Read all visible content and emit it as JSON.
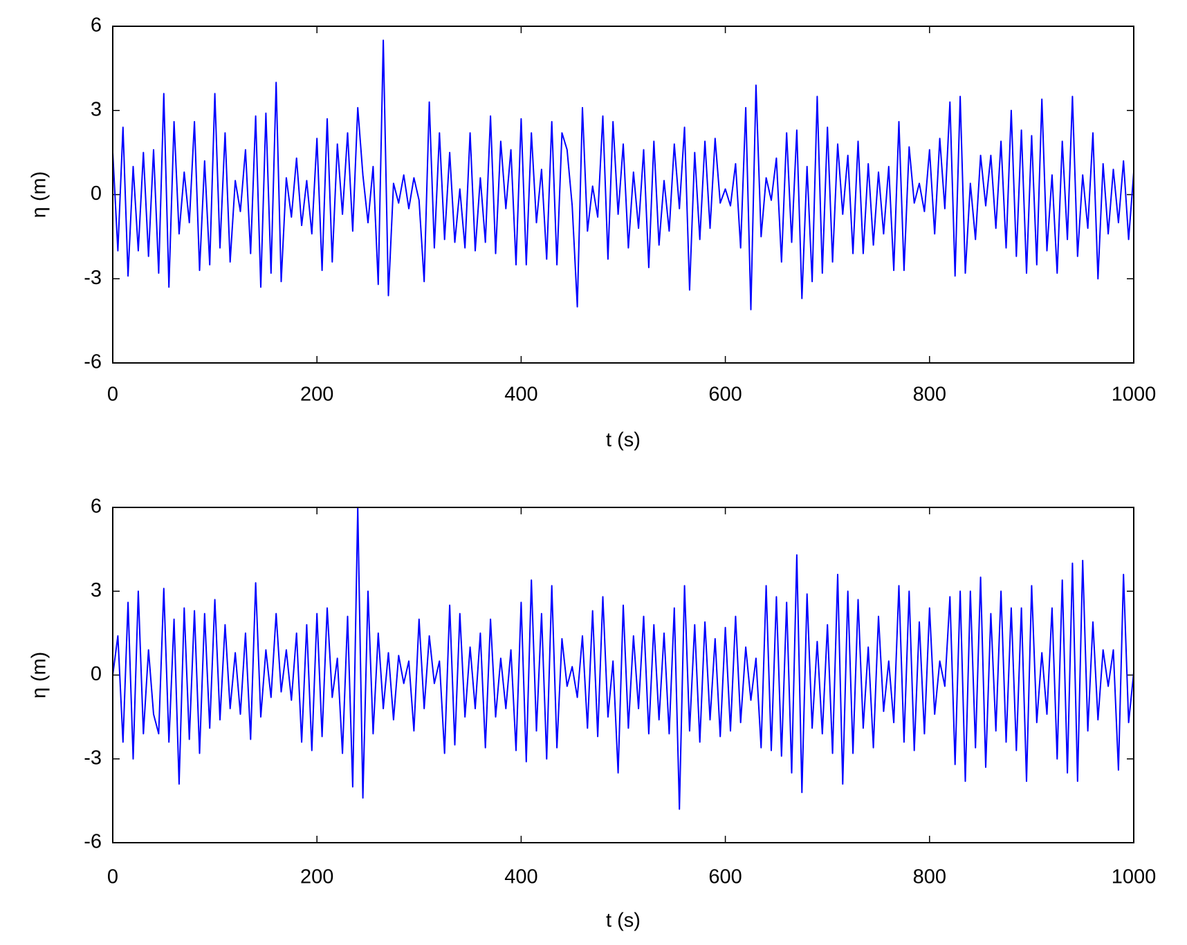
{
  "chart_data": [
    {
      "type": "line",
      "xlabel": "t (s)",
      "ylabel": "η (m)",
      "xlim": [
        0,
        1000
      ],
      "xticks": [
        0,
        200,
        400,
        600,
        800,
        1000
      ],
      "ylim": [
        -6,
        6
      ],
      "yticks": [
        -6,
        -3,
        0,
        3,
        6
      ],
      "color": "#0000ff",
      "x": [
        0,
        5,
        10,
        15,
        20,
        25,
        30,
        35,
        40,
        45,
        50,
        55,
        60,
        65,
        70,
        75,
        80,
        85,
        90,
        95,
        100,
        105,
        110,
        115,
        120,
        125,
        130,
        135,
        140,
        145,
        150,
        155,
        160,
        165,
        170,
        175,
        180,
        185,
        190,
        195,
        200,
        205,
        210,
        215,
        220,
        225,
        230,
        235,
        240,
        245,
        250,
        255,
        260,
        265,
        270,
        275,
        280,
        285,
        290,
        295,
        300,
        305,
        310,
        315,
        320,
        325,
        330,
        335,
        340,
        345,
        350,
        355,
        360,
        365,
        370,
        375,
        380,
        385,
        390,
        395,
        400,
        405,
        410,
        415,
        420,
        425,
        430,
        435,
        440,
        445,
        450,
        455,
        460,
        465,
        470,
        475,
        480,
        485,
        490,
        495,
        500,
        505,
        510,
        515,
        520,
        525,
        530,
        535,
        540,
        545,
        550,
        555,
        560,
        565,
        570,
        575,
        580,
        585,
        590,
        595,
        600,
        605,
        610,
        615,
        620,
        625,
        630,
        635,
        640,
        645,
        650,
        655,
        660,
        665,
        670,
        675,
        680,
        685,
        690,
        695,
        700,
        705,
        710,
        715,
        720,
        725,
        730,
        735,
        740,
        745,
        750,
        755,
        760,
        765,
        770,
        775,
        780,
        785,
        790,
        795,
        800,
        805,
        810,
        815,
        820,
        825,
        830,
        835,
        840,
        845,
        850,
        855,
        860,
        865,
        870,
        875,
        880,
        885,
        890,
        895,
        900,
        905,
        910,
        915,
        920,
        925,
        930,
        935,
        940,
        945,
        950,
        955,
        960,
        965,
        970,
        975,
        980,
        985,
        990,
        995,
        1000
      ],
      "values": [
        1.5,
        -2.0,
        2.4,
        -2.9,
        1.0,
        -2.0,
        1.5,
        -2.2,
        1.6,
        -2.8,
        3.6,
        -3.3,
        2.6,
        -1.4,
        0.8,
        -1.0,
        2.6,
        -2.7,
        1.2,
        -2.5,
        3.6,
        -1.9,
        2.2,
        -2.4,
        0.5,
        -0.6,
        1.6,
        -2.1,
        2.8,
        -3.3,
        2.9,
        -2.8,
        4.0,
        -3.1,
        0.6,
        -0.8,
        1.3,
        -1.1,
        0.5,
        -1.4,
        2.0,
        -2.7,
        2.7,
        -2.4,
        1.8,
        -0.7,
        2.2,
        -1.3,
        3.1,
        0.7,
        -1.0,
        1.0,
        -3.2,
        5.5,
        -3.6,
        0.4,
        -0.3,
        0.7,
        -0.5,
        0.6,
        -0.2,
        -3.1,
        3.3,
        -1.9,
        2.2,
        -1.6,
        1.5,
        -1.7,
        0.2,
        -1.9,
        2.2,
        -2.0,
        0.6,
        -1.7,
        2.8,
        -2.1,
        1.9,
        -0.5,
        1.6,
        -2.5,
        2.7,
        -2.5,
        2.2,
        -1.0,
        0.9,
        -2.3,
        2.6,
        -2.5,
        2.2,
        1.6,
        -0.4,
        -4.0,
        3.1,
        -1.3,
        0.3,
        -0.8,
        2.8,
        -2.3,
        2.6,
        -0.7,
        1.8,
        -1.9,
        0.8,
        -1.2,
        1.6,
        -2.6,
        1.9,
        -1.8,
        0.5,
        -1.3,
        1.8,
        -0.5,
        2.4,
        -3.4,
        1.5,
        -1.6,
        1.9,
        -1.2,
        2.0,
        -0.3,
        0.2,
        -0.4,
        1.1,
        -1.9,
        3.1,
        -4.1,
        3.9,
        -1.5,
        0.6,
        -0.2,
        1.3,
        -2.4,
        2.2,
        -1.7,
        2.3,
        -3.7,
        1.0,
        -3.1,
        3.5,
        -2.8,
        2.4,
        -2.4,
        1.8,
        -0.7,
        1.4,
        -2.1,
        1.9,
        -2.1,
        1.1,
        -1.8,
        0.8,
        -1.4,
        1.0,
        -2.7,
        2.6,
        -2.7,
        1.7,
        -0.3,
        0.4,
        -0.6,
        1.6,
        -1.4,
        2.0,
        -0.5,
        3.3,
        -2.9,
        3.5,
        -2.8,
        0.4,
        -1.6,
        1.4,
        -0.4,
        1.4,
        -1.2,
        1.9,
        -1.9,
        3.0,
        -2.2,
        2.3,
        -2.8,
        2.1,
        -2.5,
        3.4,
        -2.0,
        0.7,
        -2.8,
        1.9,
        -1.6,
        3.5,
        -2.2,
        0.7,
        -1.2,
        2.2,
        -3.0,
        1.1,
        -1.4,
        0.9,
        -1.0,
        1.2,
        -1.6,
        0.8
      ]
    },
    {
      "type": "line",
      "xlabel": "t (s)",
      "ylabel": "η (m)",
      "xlim": [
        0,
        1000
      ],
      "xticks": [
        0,
        200,
        400,
        600,
        800,
        1000
      ],
      "ylim": [
        -6,
        6
      ],
      "yticks": [
        -6,
        -3,
        0,
        3,
        6
      ],
      "color": "#0000ff",
      "x": [
        0,
        5,
        10,
        15,
        20,
        25,
        30,
        35,
        40,
        45,
        50,
        55,
        60,
        65,
        70,
        75,
        80,
        85,
        90,
        95,
        100,
        105,
        110,
        115,
        120,
        125,
        130,
        135,
        140,
        145,
        150,
        155,
        160,
        165,
        170,
        175,
        180,
        185,
        190,
        195,
        200,
        205,
        210,
        215,
        220,
        225,
        230,
        235,
        240,
        245,
        250,
        255,
        260,
        265,
        270,
        275,
        280,
        285,
        290,
        295,
        300,
        305,
        310,
        315,
        320,
        325,
        330,
        335,
        340,
        345,
        350,
        355,
        360,
        365,
        370,
        375,
        380,
        385,
        390,
        395,
        400,
        405,
        410,
        415,
        420,
        425,
        430,
        435,
        440,
        445,
        450,
        455,
        460,
        465,
        470,
        475,
        480,
        485,
        490,
        495,
        500,
        505,
        510,
        515,
        520,
        525,
        530,
        535,
        540,
        545,
        550,
        555,
        560,
        565,
        570,
        575,
        580,
        585,
        590,
        595,
        600,
        605,
        610,
        615,
        620,
        625,
        630,
        635,
        640,
        645,
        650,
        655,
        660,
        665,
        670,
        675,
        680,
        685,
        690,
        695,
        700,
        705,
        710,
        715,
        720,
        725,
        730,
        735,
        740,
        745,
        750,
        755,
        760,
        765,
        770,
        775,
        780,
        785,
        790,
        795,
        800,
        805,
        810,
        815,
        820,
        825,
        830,
        835,
        840,
        845,
        850,
        855,
        860,
        865,
        870,
        875,
        880,
        885,
        890,
        895,
        900,
        905,
        910,
        915,
        920,
        925,
        930,
        935,
        940,
        945,
        950,
        955,
        960,
        965,
        970,
        975,
        980,
        985,
        990,
        995,
        1000
      ],
      "values": [
        0.0,
        1.4,
        -2.4,
        2.6,
        -3.0,
        3.0,
        -2.1,
        0.9,
        -1.4,
        -2.1,
        3.1,
        -2.4,
        2.0,
        -3.9,
        2.4,
        -2.3,
        2.3,
        -2.8,
        2.2,
        -1.9,
        2.7,
        -1.6,
        1.8,
        -1.2,
        0.8,
        -1.4,
        1.5,
        -2.3,
        3.3,
        -1.5,
        0.9,
        -0.8,
        2.2,
        -0.6,
        0.9,
        -0.9,
        1.5,
        -2.4,
        1.8,
        -2.7,
        2.2,
        -2.2,
        2.4,
        -0.8,
        0.6,
        -2.8,
        2.1,
        -4.0,
        6.0,
        -4.4,
        3.0,
        -2.1,
        1.5,
        -1.2,
        0.8,
        -1.6,
        0.7,
        -0.3,
        0.5,
        -2.0,
        2.0,
        -1.2,
        1.4,
        -0.3,
        0.5,
        -2.8,
        2.5,
        -2.5,
        2.2,
        -1.5,
        1.0,
        -1.2,
        1.5,
        -2.6,
        2.0,
        -1.5,
        0.6,
        -1.2,
        0.9,
        -2.7,
        2.6,
        -3.1,
        3.4,
        -2.0,
        2.2,
        -3.0,
        3.2,
        -2.6,
        1.3,
        -0.4,
        0.3,
        -0.8,
        1.4,
        -1.9,
        2.3,
        -2.2,
        2.8,
        -1.5,
        0.5,
        -3.5,
        2.5,
        -1.9,
        1.4,
        -1.2,
        2.1,
        -2.1,
        1.8,
        -1.6,
        1.5,
        -2.1,
        2.4,
        -4.8,
        3.2,
        -2.0,
        1.8,
        -2.4,
        1.9,
        -1.6,
        1.3,
        -2.2,
        1.7,
        -2.0,
        2.1,
        -1.7,
        1.0,
        -0.9,
        0.6,
        -2.6,
        3.2,
        -2.7,
        2.8,
        -2.9,
        2.6,
        -3.5,
        4.3,
        -4.2,
        2.9,
        -1.9,
        1.2,
        -2.1,
        1.8,
        -2.8,
        3.6,
        -3.9,
        3.0,
        -2.8,
        2.7,
        -1.9,
        1.0,
        -2.6,
        2.1,
        -1.3,
        0.5,
        -1.7,
        3.2,
        -2.4,
        3.0,
        -2.7,
        1.9,
        -2.1,
        2.4,
        -1.4,
        0.5,
        -0.4,
        2.8,
        -3.2,
        3.0,
        -3.8,
        3.0,
        -2.6,
        3.5,
        -3.3,
        2.2,
        -2.0,
        3.0,
        -2.4,
        2.4,
        -2.7,
        2.4,
        -3.8,
        3.2,
        -1.7,
        0.8,
        -1.4,
        2.4,
        -3.0,
        3.4,
        -3.5,
        4.0,
        -3.8,
        4.1,
        -2.0,
        1.9,
        -1.6,
        0.9,
        -0.4,
        0.9,
        -3.4,
        3.6,
        -1.7,
        0.1
      ]
    }
  ]
}
